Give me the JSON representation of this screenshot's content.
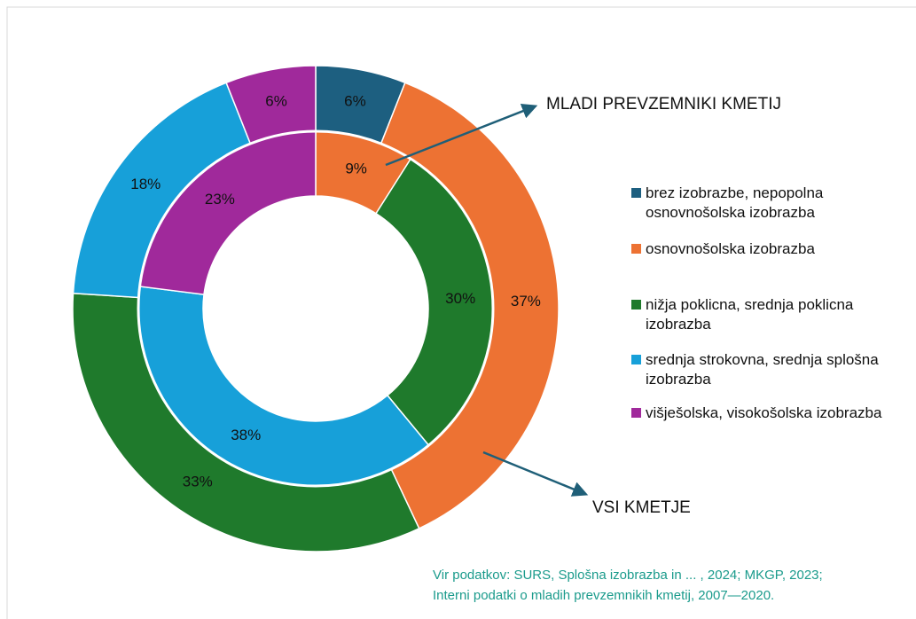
{
  "chart_data": {
    "type": "donut",
    "categories": [
      "brez izobrazbe, nepopolna osnovnošolska izobrazba",
      "osnovnošolska izobrazba",
      "nižja poklicna, srednja poklicna izobrazba",
      "srednja strokovna, srednja splošna izobrazba",
      "višješolska, visokošolska izobrazba"
    ],
    "colors": [
      "#1d5f80",
      "#ed7233",
      "#1f7a2c",
      "#17a0d9",
      "#a0299b"
    ],
    "series": [
      {
        "name": "VSI KMETJE",
        "values": [
          6,
          37,
          33,
          18,
          6
        ],
        "value_labels": [
          "6%",
          "37%",
          "33%",
          "18%",
          "6%"
        ]
      },
      {
        "name": "MLADI PREVZEMNIKI KMETIJ",
        "values": [
          0,
          9,
          30,
          38,
          23
        ],
        "value_labels": [
          null,
          "9%",
          "30%",
          "38%",
          "23%"
        ]
      }
    ],
    "source": [
      "Vir podatkov: SURS, Splošna izobrazba in ... , 2024; MKGP, 2023;",
      "Interni podatki o mladih prevzemnikih kmetij, 2007—2020."
    ]
  }
}
